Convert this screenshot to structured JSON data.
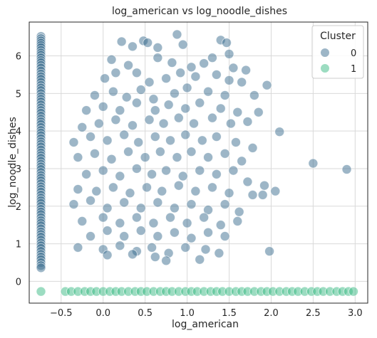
{
  "chart_data": {
    "type": "scatter",
    "title": "log_american vs log_noodle_dishes",
    "xlabel": "log_american",
    "ylabel": "log_noodle_dishes",
    "xlim": [
      -0.88,
      3.15
    ],
    "ylim": [
      -0.58,
      6.9
    ],
    "xticks": [
      "−0.5",
      "0.0",
      "0.5",
      "1.0",
      "1.5",
      "2.0",
      "2.5",
      "3.0"
    ],
    "xtick_values": [
      -0.5,
      0,
      0.5,
      1.0,
      1.5,
      2.0,
      2.5,
      3.0
    ],
    "yticks": [
      "0",
      "1",
      "2",
      "3",
      "4",
      "5",
      "6"
    ],
    "ytick_values": [
      0,
      1,
      2,
      3,
      4,
      5,
      6
    ],
    "grid": true,
    "legend": {
      "title": "Cluster",
      "placement": "top-right",
      "entries": [
        "0",
        "1"
      ]
    },
    "series": [
      {
        "name": "0",
        "color": "#3b6e8f",
        "points": [
          [
            -0.74,
            6.52
          ],
          [
            -0.74,
            6.46
          ],
          [
            -0.74,
            6.4
          ],
          [
            -0.74,
            6.34
          ],
          [
            -0.74,
            6.28
          ],
          [
            -0.74,
            6.22
          ],
          [
            -0.74,
            6.15
          ],
          [
            -0.74,
            6.08
          ],
          [
            -0.74,
            6.02
          ],
          [
            -0.74,
            5.95
          ],
          [
            -0.74,
            5.88
          ],
          [
            -0.74,
            5.82
          ],
          [
            -0.74,
            5.75
          ],
          [
            -0.74,
            5.68
          ],
          [
            -0.74,
            5.6
          ],
          [
            -0.74,
            5.52
          ],
          [
            -0.74,
            5.45
          ],
          [
            -0.74,
            5.38
          ],
          [
            -0.74,
            5.3
          ],
          [
            -0.74,
            5.22
          ],
          [
            -0.74,
            5.15
          ],
          [
            -0.74,
            5.08
          ],
          [
            -0.74,
            5.0
          ],
          [
            -0.74,
            4.92
          ],
          [
            -0.74,
            4.85
          ],
          [
            -0.74,
            4.78
          ],
          [
            -0.74,
            4.7
          ],
          [
            -0.74,
            4.62
          ],
          [
            -0.74,
            4.55
          ],
          [
            -0.74,
            4.48
          ],
          [
            -0.74,
            4.4
          ],
          [
            -0.74,
            4.32
          ],
          [
            -0.74,
            4.25
          ],
          [
            -0.74,
            4.18
          ],
          [
            -0.74,
            4.1
          ],
          [
            -0.74,
            4.02
          ],
          [
            -0.74,
            3.95
          ],
          [
            -0.74,
            3.88
          ],
          [
            -0.74,
            3.8
          ],
          [
            -0.74,
            3.72
          ],
          [
            -0.74,
            3.65
          ],
          [
            -0.74,
            3.58
          ],
          [
            -0.74,
            3.5
          ],
          [
            -0.74,
            3.42
          ],
          [
            -0.74,
            3.35
          ],
          [
            -0.74,
            3.28
          ],
          [
            -0.74,
            3.2
          ],
          [
            -0.74,
            3.12
          ],
          [
            -0.74,
            3.05
          ],
          [
            -0.74,
            2.98
          ],
          [
            -0.74,
            2.9
          ],
          [
            -0.74,
            2.82
          ],
          [
            -0.74,
            2.75
          ],
          [
            -0.74,
            2.68
          ],
          [
            -0.74,
            2.6
          ],
          [
            -0.74,
            2.52
          ],
          [
            -0.74,
            2.45
          ],
          [
            -0.74,
            2.38
          ],
          [
            -0.74,
            2.3
          ],
          [
            -0.74,
            2.22
          ],
          [
            -0.74,
            2.15
          ],
          [
            -0.74,
            2.08
          ],
          [
            -0.74,
            2.0
          ],
          [
            -0.74,
            1.92
          ],
          [
            -0.74,
            1.85
          ],
          [
            -0.74,
            1.78
          ],
          [
            -0.74,
            1.7
          ],
          [
            -0.74,
            1.62
          ],
          [
            -0.74,
            1.55
          ],
          [
            -0.74,
            1.48
          ],
          [
            -0.74,
            1.4
          ],
          [
            -0.74,
            1.32
          ],
          [
            -0.74,
            1.25
          ],
          [
            -0.74,
            1.18
          ],
          [
            -0.74,
            1.1
          ],
          [
            -0.74,
            1.02
          ],
          [
            -0.74,
            0.95
          ],
          [
            -0.74,
            0.88
          ],
          [
            -0.74,
            0.8
          ],
          [
            -0.74,
            0.72
          ],
          [
            -0.74,
            0.65
          ],
          [
            -0.74,
            0.58
          ],
          [
            -0.74,
            0.5
          ],
          [
            -0.74,
            0.42
          ],
          [
            -0.74,
            0.36
          ],
          [
            0.22,
            6.38
          ],
          [
            0.48,
            6.4
          ],
          [
            0.53,
            6.35
          ],
          [
            0.88,
            6.57
          ],
          [
            1.4,
            6.42
          ],
          [
            1.47,
            6.35
          ],
          [
            0.95,
            6.3
          ],
          [
            0.65,
            6.22
          ],
          [
            0.35,
            6.25
          ],
          [
            1.5,
            6.05
          ],
          [
            0.1,
            5.9
          ],
          [
            0.3,
            5.75
          ],
          [
            0.65,
            5.95
          ],
          [
            0.82,
            5.82
          ],
          [
            1.05,
            5.7
          ],
          [
            1.2,
            5.8
          ],
          [
            1.3,
            5.95
          ],
          [
            1.55,
            5.68
          ],
          [
            1.7,
            5.62
          ],
          [
            1.95,
            5.22
          ],
          [
            0.02,
            5.4
          ],
          [
            0.15,
            5.55
          ],
          [
            0.4,
            5.55
          ],
          [
            0.55,
            5.3
          ],
          [
            0.75,
            5.4
          ],
          [
            0.92,
            5.55
          ],
          [
            1.1,
            5.45
          ],
          [
            1.35,
            5.5
          ],
          [
            1.5,
            5.35
          ],
          [
            1.65,
            5.3
          ],
          [
            -0.1,
            4.95
          ],
          [
            0.12,
            5.05
          ],
          [
            0.28,
            4.9
          ],
          [
            0.45,
            5.1
          ],
          [
            0.6,
            4.85
          ],
          [
            0.85,
            5.0
          ],
          [
            1.0,
            5.15
          ],
          [
            1.25,
            5.05
          ],
          [
            1.45,
            4.95
          ],
          [
            1.8,
            4.95
          ],
          [
            -0.2,
            4.55
          ],
          [
            0.0,
            4.65
          ],
          [
            0.2,
            4.55
          ],
          [
            0.4,
            4.75
          ],
          [
            0.62,
            4.55
          ],
          [
            0.78,
            4.7
          ],
          [
            0.98,
            4.6
          ],
          [
            1.15,
            4.75
          ],
          [
            1.4,
            4.6
          ],
          [
            1.6,
            4.5
          ],
          [
            1.85,
            4.5
          ],
          [
            -0.25,
            4.1
          ],
          [
            -0.05,
            4.2
          ],
          [
            0.15,
            4.3
          ],
          [
            0.35,
            4.15
          ],
          [
            0.55,
            4.3
          ],
          [
            0.72,
            4.2
          ],
          [
            0.9,
            4.35
          ],
          [
            1.08,
            4.2
          ],
          [
            1.3,
            4.35
          ],
          [
            1.52,
            4.2
          ],
          [
            1.72,
            4.25
          ],
          [
            2.1,
            3.98
          ],
          [
            -0.35,
            3.7
          ],
          [
            -0.15,
            3.85
          ],
          [
            0.05,
            3.75
          ],
          [
            0.25,
            3.9
          ],
          [
            0.42,
            3.7
          ],
          [
            0.62,
            3.85
          ],
          [
            0.8,
            3.75
          ],
          [
            0.98,
            3.9
          ],
          [
            1.18,
            3.75
          ],
          [
            1.35,
            3.85
          ],
          [
            1.58,
            3.7
          ],
          [
            1.78,
            3.55
          ],
          [
            -0.3,
            3.3
          ],
          [
            -0.1,
            3.4
          ],
          [
            0.1,
            3.25
          ],
          [
            0.3,
            3.45
          ],
          [
            0.5,
            3.3
          ],
          [
            0.68,
            3.45
          ],
          [
            0.88,
            3.3
          ],
          [
            1.05,
            3.45
          ],
          [
            1.25,
            3.3
          ],
          [
            1.45,
            3.4
          ],
          [
            1.65,
            3.2
          ],
          [
            2.5,
            3.14
          ],
          [
            2.9,
            2.98
          ],
          [
            -0.2,
            2.85
          ],
          [
            0.0,
            2.95
          ],
          [
            0.2,
            2.8
          ],
          [
            0.4,
            3.0
          ],
          [
            0.58,
            2.85
          ],
          [
            0.75,
            2.95
          ],
          [
            0.95,
            2.8
          ],
          [
            1.15,
            2.95
          ],
          [
            1.35,
            2.85
          ],
          [
            1.55,
            2.95
          ],
          [
            1.72,
            2.65
          ],
          [
            1.92,
            2.55
          ],
          [
            -0.3,
            2.45
          ],
          [
            -0.08,
            2.4
          ],
          [
            0.12,
            2.5
          ],
          [
            0.32,
            2.35
          ],
          [
            0.52,
            2.5
          ],
          [
            0.7,
            2.4
          ],
          [
            0.9,
            2.55
          ],
          [
            1.1,
            2.4
          ],
          [
            1.3,
            2.5
          ],
          [
            1.5,
            2.35
          ],
          [
            1.78,
            2.3
          ],
          [
            1.9,
            2.3
          ],
          [
            2.05,
            2.4
          ],
          [
            -0.35,
            2.05
          ],
          [
            -0.15,
            2.15
          ],
          [
            0.05,
            1.95
          ],
          [
            0.25,
            2.1
          ],
          [
            0.45,
            1.95
          ],
          [
            0.65,
            2.1
          ],
          [
            0.85,
            1.95
          ],
          [
            1.05,
            2.05
          ],
          [
            1.25,
            1.9
          ],
          [
            1.45,
            2.05
          ],
          [
            1.62,
            1.85
          ],
          [
            -0.25,
            1.6
          ],
          [
            0.0,
            1.7
          ],
          [
            0.2,
            1.55
          ],
          [
            0.4,
            1.7
          ],
          [
            0.6,
            1.55
          ],
          [
            0.8,
            1.7
          ],
          [
            1.0,
            1.55
          ],
          [
            1.2,
            1.7
          ],
          [
            1.4,
            1.5
          ],
          [
            1.6,
            1.6
          ],
          [
            -0.15,
            1.2
          ],
          [
            0.05,
            1.35
          ],
          [
            0.25,
            1.2
          ],
          [
            0.45,
            1.35
          ],
          [
            0.65,
            1.2
          ],
          [
            0.85,
            1.3
          ],
          [
            1.05,
            1.15
          ],
          [
            1.25,
            1.3
          ],
          [
            1.45,
            1.2
          ],
          [
            -0.3,
            0.9
          ],
          [
            0.0,
            0.85
          ],
          [
            0.2,
            0.95
          ],
          [
            0.4,
            0.8
          ],
          [
            0.58,
            0.9
          ],
          [
            0.78,
            0.75
          ],
          [
            0.98,
            0.9
          ],
          [
            1.22,
            0.85
          ],
          [
            1.38,
            0.75
          ],
          [
            1.98,
            0.8
          ],
          [
            0.05,
            0.7
          ],
          [
            0.35,
            0.72
          ],
          [
            0.62,
            0.65
          ],
          [
            0.75,
            0.55
          ],
          [
            1.15,
            0.58
          ]
        ]
      },
      {
        "name": "1",
        "color": "#3aba84",
        "points": [
          [
            -0.74,
            -0.27
          ],
          [
            -0.45,
            -0.27
          ],
          [
            -0.38,
            -0.27
          ],
          [
            -0.3,
            -0.27
          ],
          [
            -0.22,
            -0.27
          ],
          [
            -0.15,
            -0.27
          ],
          [
            -0.08,
            -0.27
          ],
          [
            0.0,
            -0.27
          ],
          [
            0.08,
            -0.27
          ],
          [
            0.15,
            -0.27
          ],
          [
            0.22,
            -0.27
          ],
          [
            0.3,
            -0.27
          ],
          [
            0.38,
            -0.27
          ],
          [
            0.45,
            -0.27
          ],
          [
            0.52,
            -0.27
          ],
          [
            0.6,
            -0.27
          ],
          [
            0.68,
            -0.27
          ],
          [
            0.75,
            -0.27
          ],
          [
            0.82,
            -0.27
          ],
          [
            0.9,
            -0.27
          ],
          [
            0.98,
            -0.27
          ],
          [
            1.05,
            -0.27
          ],
          [
            1.12,
            -0.27
          ],
          [
            1.2,
            -0.27
          ],
          [
            1.28,
            -0.27
          ],
          [
            1.35,
            -0.27
          ],
          [
            1.42,
            -0.27
          ],
          [
            1.5,
            -0.27
          ],
          [
            1.58,
            -0.27
          ],
          [
            1.65,
            -0.27
          ],
          [
            1.72,
            -0.27
          ],
          [
            1.8,
            -0.27
          ],
          [
            1.88,
            -0.27
          ],
          [
            1.95,
            -0.27
          ],
          [
            2.02,
            -0.27
          ],
          [
            2.1,
            -0.27
          ],
          [
            2.18,
            -0.27
          ],
          [
            2.25,
            -0.27
          ],
          [
            2.32,
            -0.27
          ],
          [
            2.4,
            -0.27
          ],
          [
            2.48,
            -0.27
          ],
          [
            2.55,
            -0.27
          ],
          [
            2.62,
            -0.27
          ],
          [
            2.7,
            -0.27
          ],
          [
            2.78,
            -0.27
          ],
          [
            2.85,
            -0.27
          ],
          [
            2.92,
            -0.27
          ],
          [
            2.98,
            -0.27
          ]
        ]
      }
    ]
  }
}
